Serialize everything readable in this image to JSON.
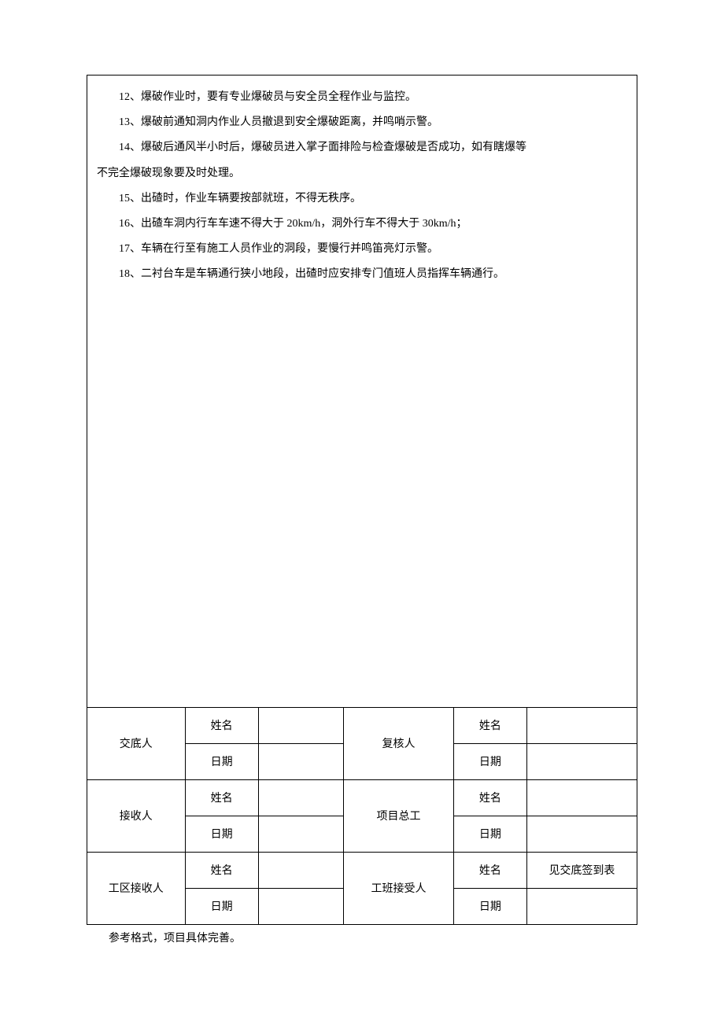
{
  "textColor": "#000000",
  "backgroundColor": "#ffffff",
  "borderColor": "#000000",
  "fontSize": 14,
  "lineHeight": 2.3,
  "content": {
    "lines": [
      "12、爆破作业时，要有专业爆破员与安全员全程作业与监控。",
      "13、爆破前通知洞内作业人员撤退到安全爆破距离，并鸣哨示警。",
      "14、爆破后通风半小时后，爆破员进入掌子面排险与检查爆破是否成功，如有瞎爆等",
      "不完全爆破现象要及时处理。",
      "15、出碴时，作业车辆要按部就班，不得无秩序。",
      "16、出碴车洞内行车车速不得大于 20km/h，洞外行车不得大于 30km/h；",
      "17、车辆在行至有施工人员作业的洞段，要慢行并鸣笛亮灯示警。",
      "18、二衬台车是车辆通行狭小地段，出碴时应安排专门值班人员指挥车辆通行。"
    ],
    "wrapIndices": [
      3
    ]
  },
  "signatureTable": {
    "rows": [
      {
        "roleLeft": "交底人",
        "labelLeft1": "姓名",
        "valueLeft1": "",
        "labelLeft2": "日期",
        "valueLeft2": "",
        "roleRight": "复核人",
        "labelRight1": "姓名",
        "valueRight1": "",
        "labelRight2": "日期",
        "valueRight2": ""
      },
      {
        "roleLeft": "接收人",
        "labelLeft1": "姓名",
        "valueLeft1": "",
        "labelLeft2": "日期",
        "valueLeft2": "",
        "roleRight": "项目总工",
        "labelRight1": "姓名",
        "valueRight1": "",
        "labelRight2": "日期",
        "valueRight2": ""
      },
      {
        "roleLeft": "工区接收人",
        "labelLeft1": "姓名",
        "valueLeft1": "",
        "labelLeft2": "日期",
        "valueLeft2": "",
        "roleRight": "工班接受人",
        "labelRight1": "姓名",
        "valueRight1": "见交底签到表",
        "labelRight2": "日期",
        "valueRight2": ""
      }
    ]
  },
  "footerNote": "参考格式，项目具体完善。"
}
